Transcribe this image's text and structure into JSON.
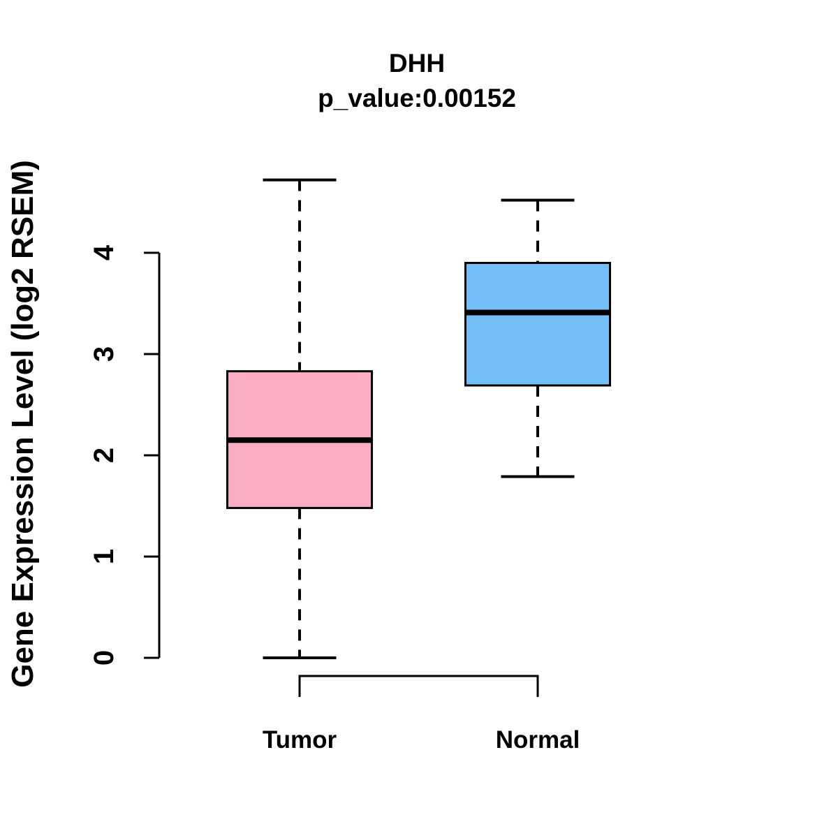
{
  "title": "DHH",
  "subtitle": "p_value:0.00152",
  "colors": {
    "tumor_box": "#FBAEC3",
    "normal_box": "#74BEF8",
    "line": "#000000",
    "background": "#FFFFFF"
  },
  "chart_data": {
    "type": "boxplot",
    "title": "DHH",
    "subtitle": "p_value:0.00152",
    "ylabel": "Gene Expression Level (log2 RSEM)",
    "xlabel": "",
    "categories": [
      "Tumor",
      "Normal"
    ],
    "series": [
      {
        "name": "Tumor",
        "min": 0.0,
        "q1": 1.48,
        "median": 2.15,
        "q3": 2.83,
        "max": 4.72,
        "color": "#FBAEC3"
      },
      {
        "name": "Normal",
        "min": 1.79,
        "q1": 2.69,
        "median": 3.41,
        "q3": 3.9,
        "max": 4.52,
        "color": "#74BEF8"
      }
    ],
    "yticks": [
      0,
      1,
      2,
      3,
      4
    ],
    "ylim": [
      0,
      4.72
    ],
    "grid": "off",
    "legend": "none",
    "annotations": [
      "comparison bracket linking Tumor and Normal below the axis"
    ]
  }
}
